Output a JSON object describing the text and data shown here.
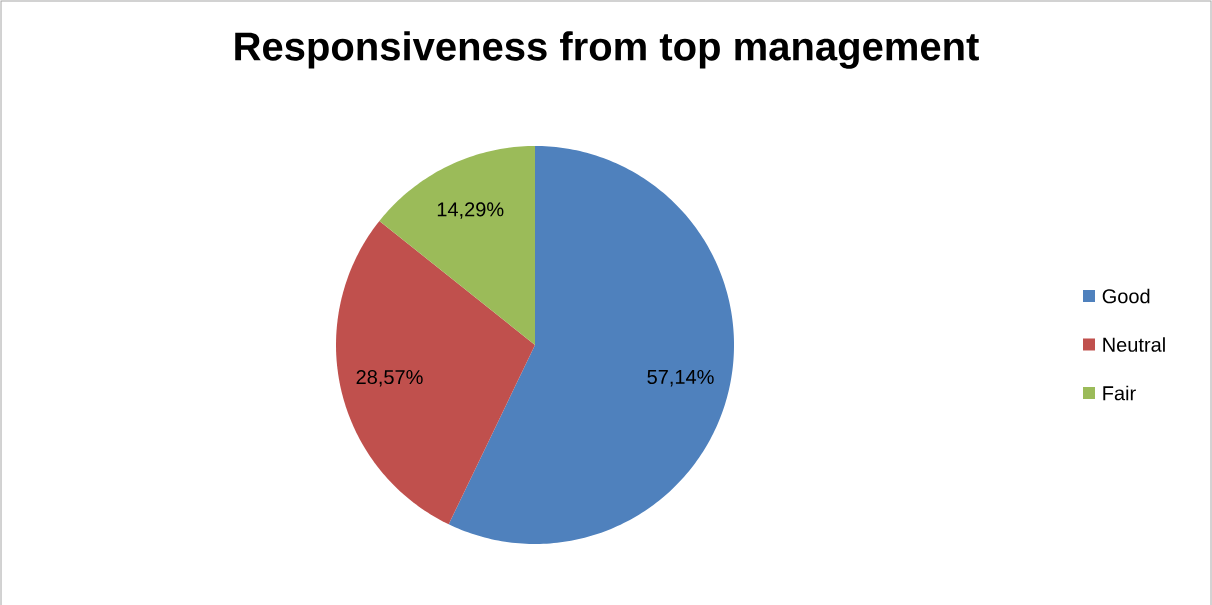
{
  "chart_data": {
    "type": "pie",
    "title": "Responsiveness from top management",
    "categories": [
      "Good",
      "Neutral",
      "Fair"
    ],
    "values": [
      57.14,
      28.57,
      14.29
    ],
    "colors": [
      "#4f81bd",
      "#c0504d",
      "#9bbb59"
    ],
    "value_labels": [
      "57,14%",
      "28,57%",
      "14,29%"
    ],
    "legend": "right"
  }
}
